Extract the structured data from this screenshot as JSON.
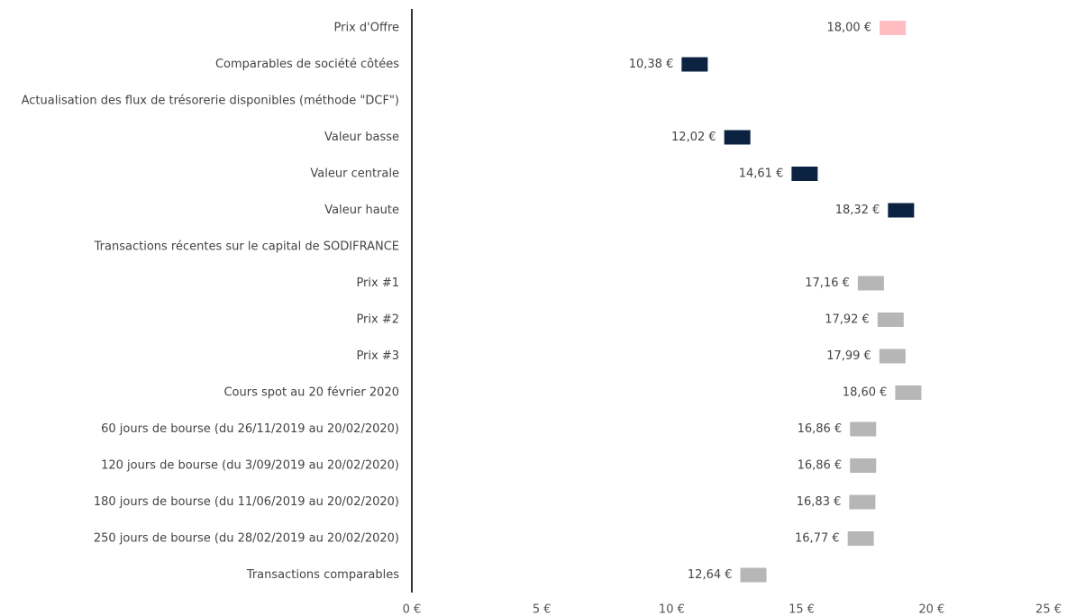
{
  "chart_data": {
    "type": "bar",
    "orientation": "horizontal",
    "xlim": [
      0,
      25
    ],
    "x_ticks": [
      "0 €",
      "5 €",
      "10 €",
      "15 €",
      "20 €",
      "25 €"
    ],
    "x_tick_values": [
      0,
      5,
      10,
      15,
      20,
      25
    ],
    "colors": {
      "offer": "#ffbdc1",
      "valuation": "#0b2341",
      "market": "#b6b6b6",
      "axis": "#333333"
    },
    "rows": [
      {
        "label": "Prix d'Offre",
        "value": 18.0,
        "value_label": "18,00 €",
        "group": "offer"
      },
      {
        "label": "Comparables de société côtées",
        "value": 10.38,
        "value_label": "10,38 €",
        "group": "valuation"
      },
      {
        "label": "Actualisation des flux de trésorerie disponibles (méthode \"DCF\")",
        "value": null,
        "value_label": "",
        "group": "header"
      },
      {
        "label": "Valeur basse",
        "value": 12.02,
        "value_label": "12,02 €",
        "group": "valuation"
      },
      {
        "label": "Valeur centrale",
        "value": 14.61,
        "value_label": "14,61 €",
        "group": "valuation"
      },
      {
        "label": "Valeur haute",
        "value": 18.32,
        "value_label": "18,32 €",
        "group": "valuation"
      },
      {
        "label": "Transactions récentes sur le capital de SODIFRANCE",
        "value": null,
        "value_label": "",
        "group": "header"
      },
      {
        "label": "Prix #1",
        "value": 17.16,
        "value_label": "17,16 €",
        "group": "market"
      },
      {
        "label": "Prix #2",
        "value": 17.92,
        "value_label": "17,92 €",
        "group": "market"
      },
      {
        "label": "Prix #3",
        "value": 17.99,
        "value_label": "17,99 €",
        "group": "market"
      },
      {
        "label": "Cours spot au 20 février 2020",
        "value": 18.6,
        "value_label": "18,60 €",
        "group": "market"
      },
      {
        "label": "60 jours de bourse (du 26/11/2019 au 20/02/2020)",
        "value": 16.86,
        "value_label": "16,86 €",
        "group": "market"
      },
      {
        "label": "120 jours de bourse  (du 3/09/2019 au 20/02/2020)",
        "value": 16.86,
        "value_label": "16,86 €",
        "group": "market"
      },
      {
        "label": "180 jours de bourse (du 11/06/2019 au 20/02/2020)",
        "value": 16.83,
        "value_label": "16,83 €",
        "group": "market"
      },
      {
        "label": "250 jours de bourse (du 28/02/2019 au 20/02/2020)",
        "value": 16.77,
        "value_label": "16,77 €",
        "group": "market"
      },
      {
        "label": "Transactions comparables",
        "value": 12.64,
        "value_label": "12,64 €",
        "group": "market"
      }
    ]
  }
}
